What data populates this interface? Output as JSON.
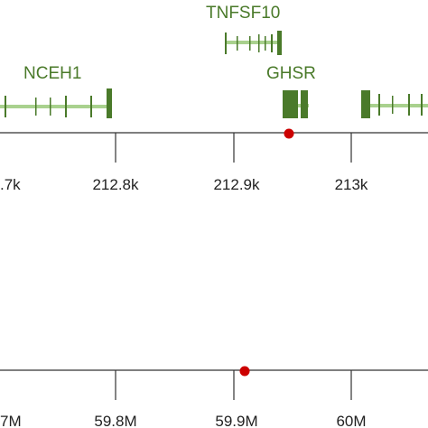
{
  "colors": {
    "gene_exon": "#4a7a2a",
    "gene_line": "#a9d18e",
    "gene_label": "#4a7a2a",
    "axis": "#333333",
    "snp_marker": "#cc0000",
    "tick_text": "#222222"
  },
  "genes": [
    {
      "name": "TNFSF10"
    },
    {
      "name": "NCEH1"
    },
    {
      "name": "GHSR"
    },
    {
      "name": ""
    }
  ],
  "top_axis": {
    "ticks": [
      {
        "label": ".7k"
      },
      {
        "label": "212.8k"
      },
      {
        "label": "212.9k"
      },
      {
        "label": "213k"
      }
    ]
  },
  "bottom_axis": {
    "ticks": [
      {
        "label": "7M"
      },
      {
        "label": "59.8M"
      },
      {
        "label": "59.9M"
      },
      {
        "label": "60M"
      }
    ]
  },
  "markers": {
    "top": {
      "name": "snp-marker"
    },
    "bottom": {
      "name": "snp-marker"
    }
  }
}
